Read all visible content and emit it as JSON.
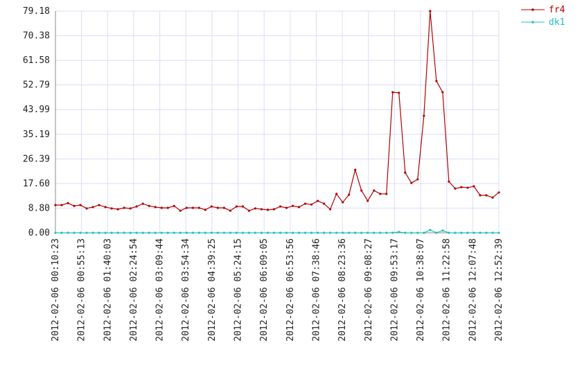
{
  "chart_data": {
    "type": "line",
    "x_labels": [
      "2012-02-06 00:10:23",
      "2012-02-06 00:55:13",
      "2012-02-06 01:40:03",
      "2012-02-06 02:24:54",
      "2012-02-06 03:09:44",
      "2012-02-06 03:54:34",
      "2012-02-06 04:39:25",
      "2012-02-06 05:24:15",
      "2012-02-06 06:09:05",
      "2012-02-06 06:53:56",
      "2012-02-06 07:38:46",
      "2012-02-06 08:23:36",
      "2012-02-06 09:08:27",
      "2012-02-06 09:53:17",
      "2012-02-06 10:38:07",
      "2012-02-06 11:22:58",
      "2012-02-06 12:07:48",
      "2012-02-06 12:52:39"
    ],
    "series": [
      {
        "name": "fr4",
        "color": "#b00000",
        "values": [
          9.9,
          9.9,
          10.6,
          9.6,
          9.9,
          8.7,
          9.2,
          9.9,
          9.2,
          8.7,
          8.4,
          8.9,
          8.7,
          9.4,
          10.4,
          9.6,
          9.2,
          8.9,
          8.9,
          9.6,
          7.9,
          8.9,
          8.9,
          8.9,
          8.2,
          9.4,
          8.9,
          8.9,
          7.9,
          9.4,
          9.4,
          7.9,
          8.7,
          8.4,
          8.2,
          8.4,
          9.4,
          8.9,
          9.6,
          9.2,
          10.4,
          10.1,
          11.4,
          10.4,
          8.4,
          13.9,
          10.9,
          13.6,
          22.5,
          15.1,
          11.4,
          15.1,
          13.9,
          13.9,
          50.2,
          50.0,
          21.5,
          17.8,
          19.1,
          41.8,
          79.18,
          54.2,
          50.2,
          18.3,
          15.8,
          16.3,
          16.1,
          16.6,
          13.4,
          13.4,
          12.6,
          14.4
        ]
      },
      {
        "name": "dk1",
        "color": "#20c0c0",
        "values": [
          0,
          0,
          0,
          0,
          0,
          0,
          0,
          0,
          0,
          0,
          0,
          0,
          0,
          0,
          0,
          0,
          0,
          0,
          0,
          0,
          0,
          0,
          0,
          0,
          0,
          0,
          0,
          0,
          0,
          0,
          0,
          0,
          0,
          0,
          0,
          0,
          0,
          0,
          0,
          0,
          0,
          0,
          0,
          0,
          0,
          0,
          0,
          0,
          0,
          0,
          0,
          0,
          0,
          0,
          0,
          0.3,
          0,
          0,
          0,
          0,
          1.0,
          0,
          0.8,
          0,
          0,
          0,
          0,
          0,
          0,
          0,
          0,
          0
        ]
      }
    ],
    "ylim": [
      0,
      79.18
    ],
    "yticks": [
      {
        "value": 0,
        "label": "0.00"
      },
      {
        "value": 8.8,
        "label": "8.80"
      },
      {
        "value": 17.6,
        "label": "17.60"
      },
      26.39,
      35.19,
      43.99,
      52.79,
      61.58,
      70.38,
      79.18
    ],
    "grid": true
  }
}
